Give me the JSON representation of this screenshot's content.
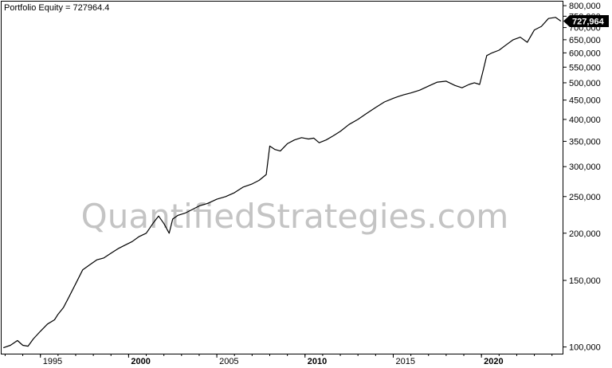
{
  "chart_data": {
    "type": "line",
    "title": "Portfolio Equity = 727964.4",
    "last_value_label": "727,964",
    "watermark": "QuantifiedStrategies.com",
    "y_scale": "log",
    "ylim": [
      96000,
      820000
    ],
    "xlim": [
      1992.8,
      2024.6
    ],
    "grid": false,
    "y_ticks": [
      {
        "value": 100000,
        "label": "100,000"
      },
      {
        "value": 150000,
        "label": "150,000"
      },
      {
        "value": 200000,
        "label": "200,000"
      },
      {
        "value": 250000,
        "label": "250,000"
      },
      {
        "value": 300000,
        "label": "300,000"
      },
      {
        "value": 350000,
        "label": "350,000"
      },
      {
        "value": 400000,
        "label": "400,000"
      },
      {
        "value": 450000,
        "label": "450,000"
      },
      {
        "value": 500000,
        "label": "500,000"
      },
      {
        "value": 550000,
        "label": "550,000"
      },
      {
        "value": 600000,
        "label": "600,000"
      },
      {
        "value": 650000,
        "label": "650,000"
      },
      {
        "value": 700000,
        "label": "700,000"
      },
      {
        "value": 750000,
        "label": "750,000"
      },
      {
        "value": 800000,
        "label": "800,000"
      }
    ],
    "x_ticks": [
      {
        "value": 1995,
        "label": "1995",
        "bold": false
      },
      {
        "value": 2000,
        "label": "2000",
        "bold": true
      },
      {
        "value": 2005,
        "label": "2005",
        "bold": false
      },
      {
        "value": 2010,
        "label": "2010",
        "bold": true
      },
      {
        "value": 2015,
        "label": "2015",
        "bold": false
      },
      {
        "value": 2020,
        "label": "2020",
        "bold": true
      }
    ],
    "series": [
      {
        "color": "#000000",
        "x": [
          1992.9,
          1993.3,
          1993.7,
          1994.0,
          1994.3,
          1994.6,
          1995.0,
          1995.4,
          1995.8,
          1996.0,
          1996.3,
          1996.6,
          1997.0,
          1997.4,
          1997.8,
          1998.2,
          1998.6,
          1999.0,
          1999.4,
          1999.8,
          2000.2,
          2000.6,
          2001.0,
          2001.4,
          2001.7,
          2002.0,
          2002.3,
          2002.5,
          2002.8,
          2003.2,
          2003.6,
          2004.0,
          2004.5,
          2005.0,
          2005.5,
          2006.0,
          2006.5,
          2007.0,
          2007.4,
          2007.8,
          2008.0,
          2008.3,
          2008.6,
          2009.0,
          2009.4,
          2009.8,
          2010.2,
          2010.5,
          2010.8,
          2011.2,
          2011.6,
          2012.0,
          2012.5,
          2013.0,
          2013.5,
          2014.0,
          2014.5,
          2015.0,
          2015.3,
          2015.6,
          2016.0,
          2016.5,
          2017.0,
          2017.5,
          2018.0,
          2018.5,
          2018.9,
          2019.3,
          2019.6,
          2019.9,
          2020.1,
          2020.3,
          2020.6,
          2021.0,
          2021.4,
          2021.8,
          2022.2,
          2022.6,
          2023.0,
          2023.4,
          2023.8,
          2024.2,
          2024.5
        ],
        "y": [
          99500,
          101000,
          104000,
          101000,
          100500,
          105000,
          110000,
          115000,
          118000,
          122000,
          127000,
          135000,
          147000,
          160000,
          165000,
          170000,
          172000,
          177000,
          182000,
          186000,
          190000,
          196000,
          200000,
          213000,
          222000,
          212000,
          200000,
          218000,
          223000,
          226000,
          231000,
          236000,
          240000,
          246000,
          250000,
          256000,
          265000,
          270000,
          276000,
          286000,
          340000,
          333000,
          330000,
          345000,
          353000,
          358000,
          355000,
          357000,
          347000,
          353000,
          362000,
          372000,
          388000,
          400000,
          415000,
          430000,
          445000,
          455000,
          460000,
          465000,
          470000,
          478000,
          490000,
          502000,
          505000,
          492000,
          485000,
          495000,
          500000,
          495000,
          540000,
          590000,
          600000,
          610000,
          630000,
          650000,
          660000,
          640000,
          690000,
          705000,
          740000,
          745000,
          727964
        ]
      }
    ]
  }
}
